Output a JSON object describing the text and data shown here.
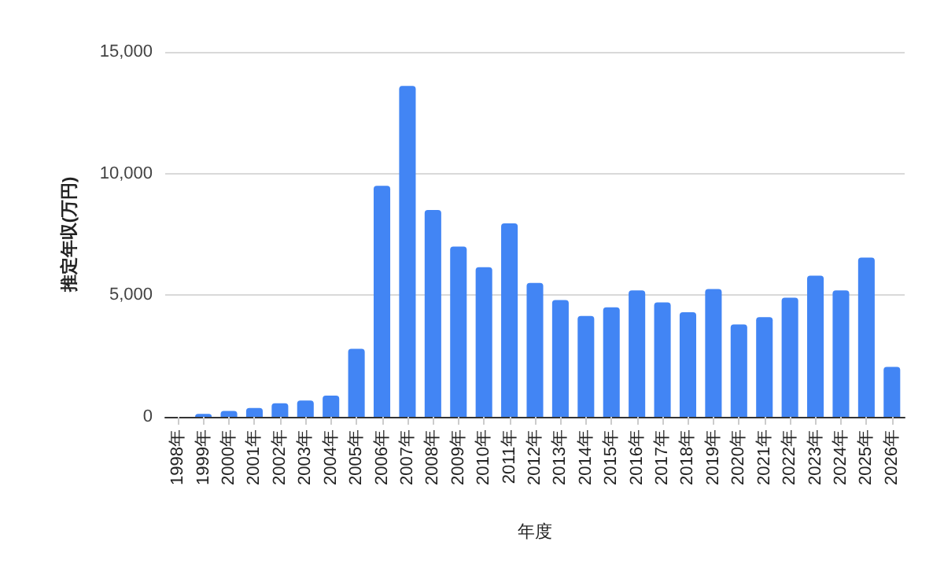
{
  "chart_data": {
    "type": "bar",
    "xlabel": "年度",
    "ylabel": "推定年収(万円)",
    "categories": [
      "1998年",
      "1999年",
      "2000年",
      "2001年",
      "2002年",
      "2003年",
      "2004年",
      "2005年",
      "2006年",
      "2007年",
      "2008年",
      "2009年",
      "2010年",
      "2011年",
      "2012年",
      "2013年",
      "2014年",
      "2015年",
      "2016年",
      "2017年",
      "2018年",
      "2019年",
      "2020年",
      "2021年",
      "2022年",
      "2023年",
      "2024年",
      "2025年",
      "2026年"
    ],
    "values": [
      0,
      120,
      240,
      360,
      560,
      670,
      870,
      2800,
      9500,
      13600,
      8500,
      7000,
      6150,
      7950,
      5500,
      4800,
      4150,
      4500,
      5200,
      4700,
      4300,
      5250,
      3800,
      4100,
      4900,
      5800,
      5200,
      6550,
      2050
    ],
    "color": "#4285f4",
    "ylim": [
      0,
      15000
    ],
    "yticks": [
      {
        "value": 0,
        "label": "0"
      },
      {
        "value": 5000,
        "label": "5,000"
      },
      {
        "value": 10000,
        "label": "10,000"
      },
      {
        "value": 15000,
        "label": "15,000"
      }
    ],
    "grid": "y"
  }
}
